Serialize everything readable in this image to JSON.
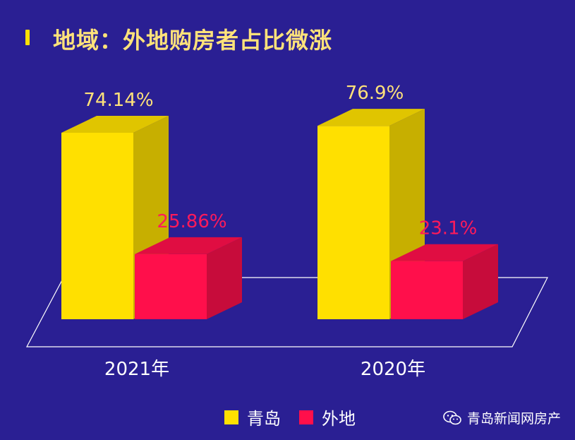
{
  "title": "地域：外地购房者占比微涨",
  "colors": {
    "background": "#2a1f93",
    "qingdao": "#ffe000",
    "waidi": "#ff0f4b",
    "label_qingdao": "#ffe27a",
    "label_waidi": "#ff1a5a"
  },
  "chart_data": {
    "type": "bar",
    "categories": [
      "2021年",
      "2020年"
    ],
    "series": [
      {
        "name": "青岛",
        "values": [
          74.14,
          76.9
        ],
        "labels": [
          "74.14%",
          "76.9%"
        ]
      },
      {
        "name": "外地",
        "values": [
          25.86,
          23.1
        ],
        "labels": [
          "25.86%",
          "23.1%"
        ]
      }
    ],
    "ylim": [
      0,
      100
    ],
    "grid": false,
    "legend_position": "bottom"
  },
  "legend": {
    "items": [
      "青岛",
      "外地"
    ]
  },
  "watermark": {
    "account_name": "青岛新闻网房产",
    "icon": "wechat-icon"
  }
}
